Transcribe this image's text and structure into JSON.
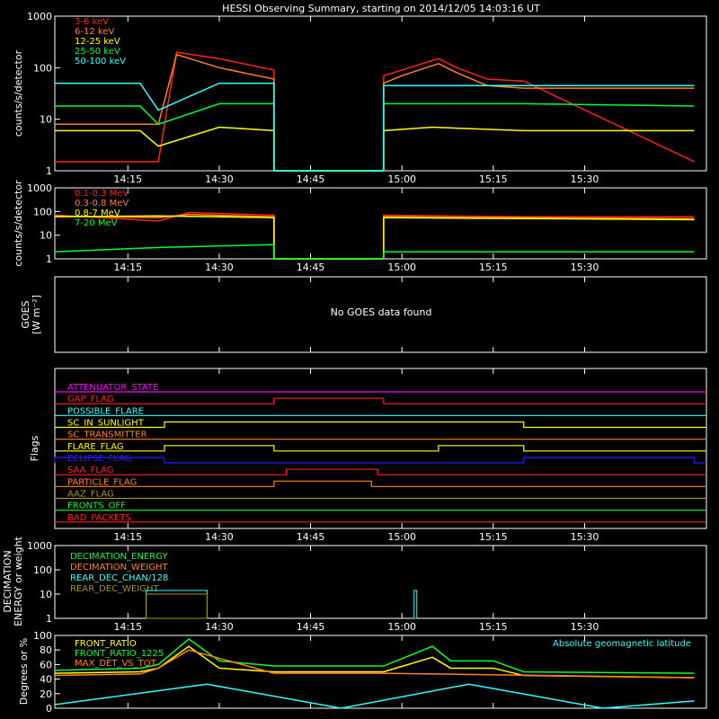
{
  "title": "HESSI Observing Summary, starting on 2014/12/05 14:03:16 UT",
  "time_ticks": [
    "14:15",
    "14:30",
    "14:45",
    "15:00",
    "15:15",
    "15:30"
  ],
  "colors": {
    "red": "#ff2020",
    "orange": "#ff8020",
    "yellow": "#ffff00",
    "green": "#00ff30",
    "cyan": "#30ffff",
    "magenta": "#ff00ff",
    "blue": "#2020ff",
    "olive": "#a09020",
    "white": "#ffffff"
  },
  "panels": {
    "p1": {
      "ylabel": "counts/s/detector",
      "yticks": [
        "1",
        "10",
        "100",
        "1000"
      ],
      "legend": [
        {
          "name": "3-6 keV",
          "color": "#ff2020"
        },
        {
          "name": "6-12 keV",
          "color": "#ff8020"
        },
        {
          "name": "12-25 keV",
          "color": "#ffff00"
        },
        {
          "name": "25-50 keV",
          "color": "#00ff30"
        },
        {
          "name": "50-100 keV",
          "color": "#30ffff"
        }
      ]
    },
    "p2": {
      "ylabel": "counts/s/detector",
      "yticks": [
        "1",
        "10",
        "100",
        "1000"
      ],
      "legend": [
        {
          "name": "0.1-0.3 MeV",
          "color": "#ff2020"
        },
        {
          "name": "0.3-0.8 MeV",
          "color": "#ff8020"
        },
        {
          "name": "0.8-7 MeV",
          "color": "#ffff00"
        },
        {
          "name": "7-20 MeV",
          "color": "#00ff30"
        }
      ]
    },
    "p3": {
      "ylabel": "GOES",
      "ylabel2": "[W m⁻²]",
      "message": "No GOES data found"
    },
    "p4": {
      "ylabel": "Flags",
      "flags": [
        {
          "name": "ATTENUATOR_STATE",
          "color": "#ff00ff"
        },
        {
          "name": "GAP_FLAG",
          "color": "#ff2020"
        },
        {
          "name": "POSSIBLE_FLARE",
          "color": "#30ffff"
        },
        {
          "name": "SC_IN_SUNLIGHT",
          "color": "#ffff00"
        },
        {
          "name": "SC_TRANSMITTER",
          "color": "#ff8020"
        },
        {
          "name": "FLARE_FLAG",
          "color": "#ffff00"
        },
        {
          "name": "ECLIPSE_FLAG",
          "color": "#2020ff"
        },
        {
          "name": "SAA_FLAG",
          "color": "#ff2020"
        },
        {
          "name": "PARTICLE_FLAG",
          "color": "#ff8020"
        },
        {
          "name": "AAZ_FLAG",
          "color": "#a09020"
        },
        {
          "name": "FRONTS_OFF",
          "color": "#00ff30"
        },
        {
          "name": "BAD_PACKETS",
          "color": "#ff2020"
        }
      ]
    },
    "p5": {
      "ylabel": "DECIMATION",
      "ylabel2": "ENERGY or weight",
      "yticks": [
        "1",
        "10",
        "100",
        "1000"
      ],
      "legend": [
        {
          "name": "DECIMATION_ENERGY",
          "color": "#00ff30"
        },
        {
          "name": "DECIMATION_WEIGHT",
          "color": "#ff8020"
        },
        {
          "name": "REAR_DEC_CHAN/128",
          "color": "#30ffff"
        },
        {
          "name": "REAR_DEC_WEIGHT",
          "color": "#a09020"
        }
      ]
    },
    "p6": {
      "ylabel": "Degrees or %",
      "yticks": [
        "0",
        "20",
        "40",
        "60",
        "80",
        "100"
      ],
      "legend": [
        {
          "name": "FRONT_RATIO",
          "color": "#ffff00"
        },
        {
          "name": "FRONT_RATIO_1225",
          "color": "#00ff30"
        },
        {
          "name": "MAX_DET_VS_TOT",
          "color": "#ff8020"
        }
      ],
      "annotation": "Absolute geomagnetic latitude"
    }
  },
  "chart_data": [
    {
      "type": "line",
      "panel": "p1",
      "yscale": "log",
      "ylim": [
        1,
        1000
      ],
      "xlim_minutes_after_14:03": [
        0,
        107
      ],
      "series": [
        {
          "name": "3-6 keV",
          "x": [
            "14:03",
            "14:17",
            "14:20",
            "14:23",
            "14:30",
            "14:39",
            "14:57",
            "15:00",
            "15:06",
            "15:09",
            "15:14",
            "15:20",
            "15:48"
          ],
          "y": [
            1.5,
            1.5,
            1.5,
            200,
            150,
            90,
            70,
            90,
            150,
            100,
            60,
            55,
            1.5
          ]
        },
        {
          "name": "6-12 keV",
          "x": [
            "14:03",
            "14:17",
            "14:20",
            "14:23",
            "14:30",
            "14:39",
            "14:57",
            "15:00",
            "15:06",
            "15:09",
            "15:14",
            "15:20",
            "15:48"
          ],
          "y": [
            8,
            8,
            8,
            180,
            100,
            60,
            50,
            70,
            120,
            80,
            45,
            40,
            40
          ]
        },
        {
          "name": "12-25 keV",
          "x": [
            "14:03",
            "14:17",
            "14:20",
            "14:30",
            "14:39",
            "14:57",
            "15:05",
            "15:20",
            "15:48"
          ],
          "y": [
            6,
            6,
            3,
            7,
            6,
            6,
            7,
            6,
            6
          ]
        },
        {
          "name": "25-50 keV",
          "x": [
            "14:03",
            "14:17",
            "14:20",
            "14:30",
            "14:39",
            "14:57",
            "15:20",
            "15:48"
          ],
          "y": [
            18,
            18,
            8,
            20,
            20,
            20,
            20,
            18
          ]
        },
        {
          "name": "50-100 keV",
          "x": [
            "14:03",
            "14:17",
            "14:20",
            "14:30",
            "14:39",
            "14:57",
            "15:20",
            "15:48"
          ],
          "y": [
            50,
            50,
            15,
            50,
            50,
            45,
            45,
            45
          ]
        }
      ]
    },
    {
      "type": "line",
      "panel": "p2",
      "yscale": "log",
      "ylim": [
        1,
        1000
      ],
      "series": [
        {
          "name": "0.1-0.3 MeV",
          "x": [
            "14:03",
            "14:20",
            "14:25",
            "14:39",
            "14:57",
            "15:20",
            "15:48"
          ],
          "y": [
            70,
            40,
            90,
            70,
            70,
            60,
            60
          ]
        },
        {
          "name": "0.3-0.8 MeV",
          "x": [
            "14:03",
            "14:20",
            "14:25",
            "14:39",
            "14:57",
            "15:20",
            "15:48"
          ],
          "y": [
            65,
            55,
            75,
            60,
            60,
            55,
            50
          ]
        },
        {
          "name": "0.8-7 MeV",
          "x": [
            "14:03",
            "14:20",
            "14:39",
            "14:57",
            "15:48"
          ],
          "y": [
            60,
            65,
            55,
            55,
            45
          ]
        },
        {
          "name": "7-20 MeV",
          "x": [
            "14:03",
            "14:20",
            "14:39",
            "14:57",
            "15:48"
          ],
          "y": [
            2,
            3,
            4,
            2,
            2
          ]
        }
      ]
    },
    {
      "type": "line",
      "panel": "p6",
      "ylim": [
        0,
        100
      ],
      "series": [
        {
          "name": "FRONT_RATIO",
          "x": [
            "14:03",
            "14:17",
            "14:20",
            "14:25",
            "14:30",
            "14:39",
            "14:57",
            "15:05",
            "15:08",
            "15:15",
            "15:20",
            "15:48"
          ],
          "y": [
            48,
            50,
            55,
            85,
            55,
            50,
            50,
            70,
            55,
            55,
            45,
            42
          ]
        },
        {
          "name": "FRONT_RATIO_1225",
          "x": [
            "14:03",
            "14:17",
            "14:20",
            "14:25",
            "14:30",
            "14:39",
            "14:57",
            "15:05",
            "15:08",
            "15:15",
            "15:20",
            "15:48"
          ],
          "y": [
            52,
            55,
            60,
            95,
            65,
            58,
            58,
            85,
            65,
            65,
            50,
            48
          ]
        },
        {
          "name": "MAX_DET_VS_TOT",
          "x": [
            "14:03",
            "14:17",
            "14:20",
            "14:25",
            "14:39",
            "14:57",
            "15:48"
          ],
          "y": [
            45,
            47,
            55,
            80,
            48,
            48,
            42
          ]
        },
        {
          "name": "Absolute geomagnetic latitude",
          "x": [
            "14:03",
            "14:28",
            "14:50",
            "15:11",
            "15:33",
            "15:48"
          ],
          "y": [
            5,
            33,
            0,
            33,
            0,
            10
          ]
        }
      ]
    }
  ]
}
